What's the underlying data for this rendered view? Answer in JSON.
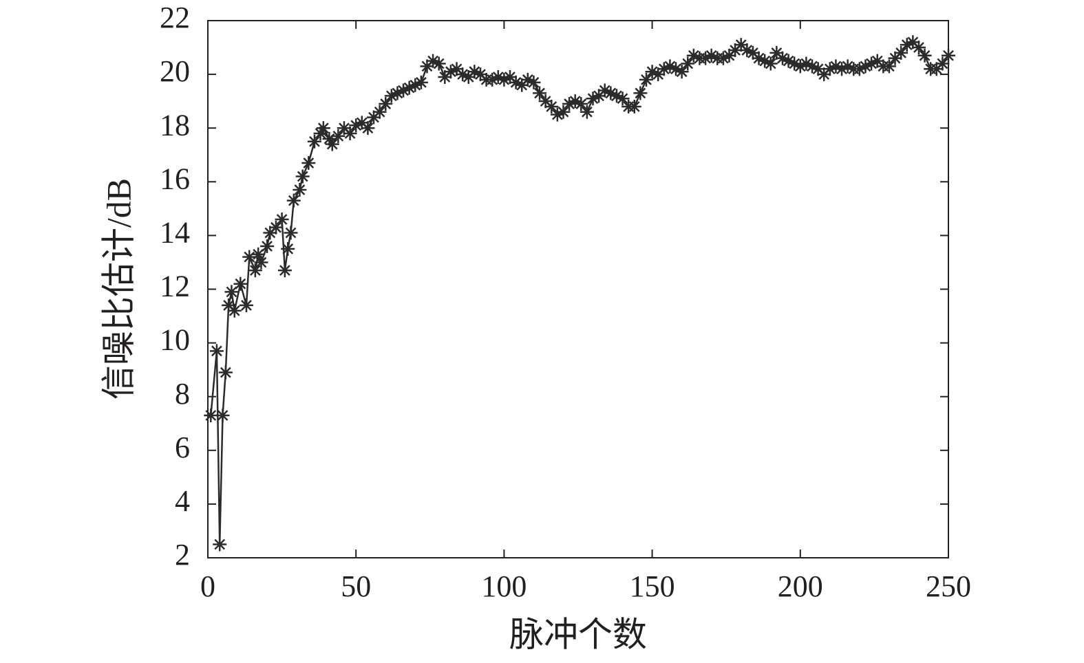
{
  "chart_data": {
    "type": "line",
    "x_label": "脉冲个数",
    "y_label": "信噪比估计/dB",
    "xlim": [
      0,
      250
    ],
    "ylim": [
      2,
      22
    ],
    "xticks": [
      0,
      50,
      100,
      150,
      200,
      250
    ],
    "yticks": [
      2,
      4,
      6,
      8,
      10,
      12,
      14,
      16,
      18,
      20,
      22
    ],
    "grid": false,
    "marker": "asterisk",
    "series": [
      {
        "color": "#2b2b2b",
        "x": [
          1,
          3,
          4,
          5,
          6,
          7,
          8,
          9,
          11,
          13,
          14,
          16,
          17,
          18,
          20,
          21,
          23,
          25,
          26,
          27,
          28,
          29,
          31,
          32,
          34,
          36,
          38,
          39,
          41,
          42,
          44,
          46,
          48,
          50,
          52,
          54,
          56,
          58,
          60,
          62,
          64,
          66,
          68,
          70,
          72,
          74,
          76,
          78,
          80,
          82,
          84,
          86,
          88,
          90,
          92,
          94,
          96,
          98,
          100,
          102,
          104,
          106,
          108,
          110,
          112,
          114,
          116,
          118,
          120,
          122,
          124,
          126,
          128,
          130,
          132,
          134,
          136,
          138,
          140,
          142,
          144,
          146,
          148,
          150,
          152,
          154,
          156,
          158,
          160,
          162,
          164,
          166,
          168,
          170,
          172,
          174,
          176,
          178,
          180,
          182,
          184,
          186,
          188,
          190,
          192,
          194,
          196,
          198,
          200,
          202,
          204,
          206,
          208,
          210,
          212,
          214,
          216,
          218,
          220,
          222,
          224,
          226,
          228,
          230,
          232,
          234,
          236,
          238,
          240,
          242,
          244,
          246,
          248,
          250
        ],
        "values": [
          7.3,
          9.7,
          2.5,
          7.3,
          8.9,
          11.4,
          11.9,
          11.2,
          12.2,
          11.4,
          13.2,
          12.7,
          13.3,
          13.0,
          13.6,
          14.1,
          14.3,
          14.6,
          12.7,
          13.5,
          14.1,
          15.3,
          15.7,
          16.2,
          16.7,
          17.5,
          17.8,
          18.0,
          17.6,
          17.4,
          17.7,
          18.0,
          17.8,
          18.1,
          18.2,
          18.0,
          18.4,
          18.6,
          18.9,
          19.2,
          19.3,
          19.4,
          19.5,
          19.6,
          19.7,
          20.3,
          20.5,
          20.4,
          19.9,
          20.1,
          20.2,
          20.0,
          19.9,
          20.1,
          20.0,
          19.8,
          19.8,
          19.9,
          19.8,
          19.9,
          19.7,
          19.6,
          19.8,
          19.7,
          19.3,
          19.0,
          18.8,
          18.5,
          18.6,
          18.9,
          19.0,
          18.9,
          18.6,
          19.1,
          19.2,
          19.4,
          19.3,
          19.2,
          19.1,
          18.8,
          18.8,
          19.3,
          19.8,
          20.1,
          20.0,
          20.2,
          20.3,
          20.2,
          20.1,
          20.4,
          20.7,
          20.6,
          20.6,
          20.7,
          20.6,
          20.6,
          20.7,
          20.9,
          21.1,
          20.9,
          20.8,
          20.6,
          20.5,
          20.4,
          20.8,
          20.6,
          20.5,
          20.4,
          20.3,
          20.4,
          20.3,
          20.2,
          20.0,
          20.2,
          20.3,
          20.2,
          20.3,
          20.2,
          20.2,
          20.3,
          20.4,
          20.5,
          20.3,
          20.3,
          20.6,
          20.8,
          21.1,
          21.2,
          21.0,
          20.7,
          20.2,
          20.2,
          20.4,
          20.7
        ]
      }
    ]
  }
}
